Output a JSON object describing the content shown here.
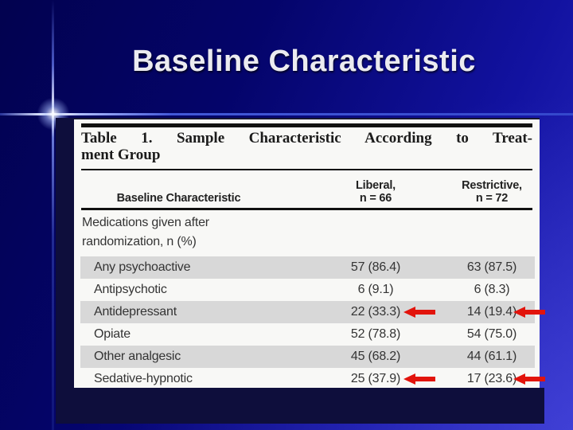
{
  "slide": {
    "title": "Baseline Characteristic"
  },
  "figure": {
    "caption": {
      "line1": "Table 1.  Sample Characteristic According to Treat-",
      "line2": "ment Group"
    },
    "header": {
      "row_head": "Baseline Characteristic",
      "liberal_line1": "Liberal,",
      "liberal_line2": "n = 66",
      "restrictive_line1": "Restrictive,",
      "restrictive_line2": "n = 72"
    },
    "group_label": {
      "line1": "Medications given after",
      "line2": "randomization, n (%)"
    },
    "rows": [
      {
        "label": "Any psychoactive",
        "liberal": "57 (86.4)",
        "restrictive": "63 (87.5)",
        "shaded": true,
        "arrows": false
      },
      {
        "label": "Antipsychotic",
        "liberal": "6 (9.1)",
        "restrictive": "6 (8.3)",
        "shaded": false,
        "arrows": false
      },
      {
        "label": "Antidepressant",
        "liberal": "22 (33.3)",
        "restrictive": "14 (19.4)",
        "shaded": true,
        "arrows": true
      },
      {
        "label": "Opiate",
        "liberal": "52 (78.8)",
        "restrictive": "54 (75.0)",
        "shaded": false,
        "arrows": false
      },
      {
        "label": "Other analgesic",
        "liberal": "45 (68.2)",
        "restrictive": "44 (61.1)",
        "shaded": true,
        "arrows": false
      },
      {
        "label": "Sedative-hypnotic",
        "liberal": "25 (37.9)",
        "restrictive": "17 (23.6)",
        "shaded": false,
        "arrows": true
      }
    ],
    "colors": {
      "arrow_red": "#e2140c",
      "row_shade": "#d8d8d8",
      "paper_white": "#f8f8f6",
      "backdrop_black": "#0e0e3c"
    }
  }
}
